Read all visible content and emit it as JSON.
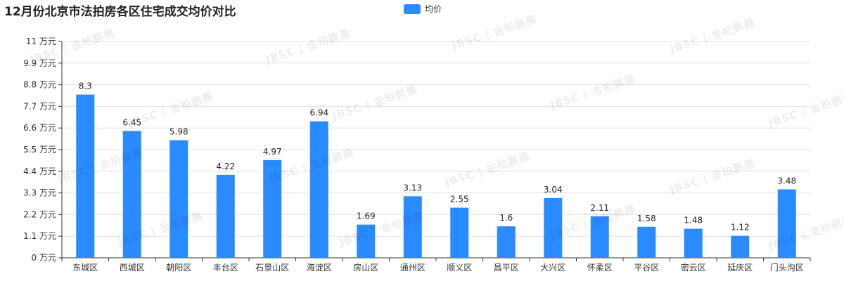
{
  "title": "12月份北京市法拍房各区住宅成交均价对比",
  "legend": {
    "label": "均价",
    "color": "#2a8aff"
  },
  "watermark": "JBSC | 金柏鹏晨",
  "chart_data": {
    "type": "bar",
    "categories": [
      "东城区",
      "西城区",
      "朝阳区",
      "丰台区",
      "石景山区",
      "海淀区",
      "房山区",
      "通州区",
      "顺义区",
      "昌平区",
      "大兴区",
      "怀柔区",
      "平谷区",
      "密云区",
      "延庆区",
      "门头沟区"
    ],
    "series": [
      {
        "name": "均价",
        "values": [
          8.3,
          6.45,
          5.98,
          4.22,
          4.97,
          6.94,
          1.69,
          3.13,
          2.55,
          1.6,
          3.04,
          2.11,
          1.58,
          1.48,
          1.12,
          3.48
        ],
        "color": "#2a8aff"
      }
    ],
    "value_labels": [
      "8.3",
      "6.45",
      "5.98",
      "4.22",
      "4.97",
      "6.94",
      "1.69",
      "3.13",
      "2.55",
      "1.6",
      "3.04",
      "2.11",
      "1.58",
      "1.48",
      "1.12",
      "3.48"
    ],
    "y_ticks": [
      "0 万元",
      "1.1 万元",
      "2.2 万元",
      "3.3 万元",
      "4.4 万元",
      "5.5 万元",
      "6.6 万元",
      "7.7 万元",
      "8.8 万元",
      "9.9 万元",
      "11 万元"
    ],
    "ylim": [
      0,
      11
    ],
    "grid": true,
    "legend_position": "top-center"
  }
}
